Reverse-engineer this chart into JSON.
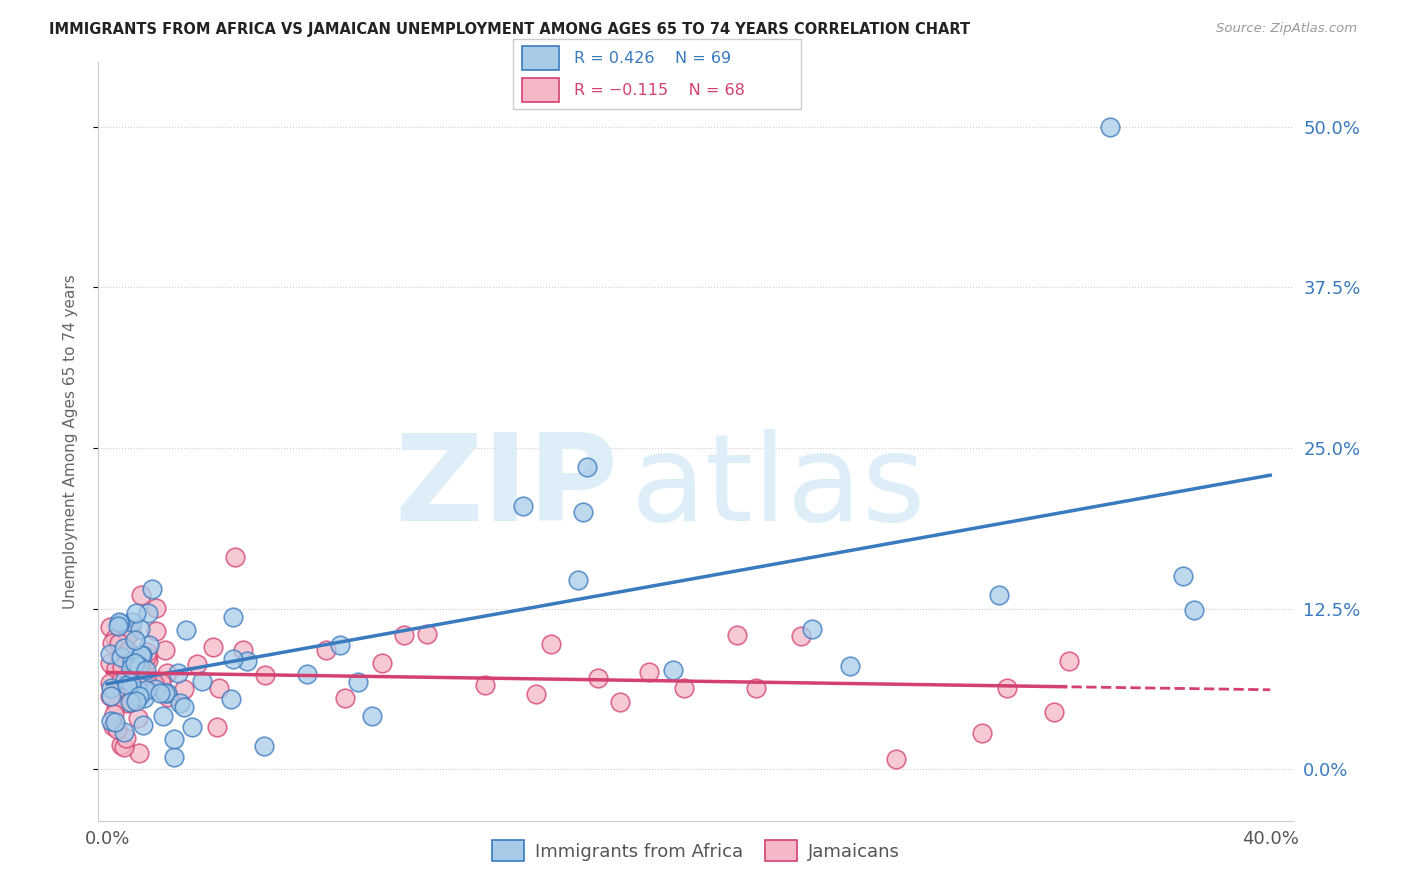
{
  "title": "IMMIGRANTS FROM AFRICA VS JAMAICAN UNEMPLOYMENT AMONG AGES 65 TO 74 YEARS CORRELATION CHART",
  "source": "Source: ZipAtlas.com",
  "ylabel": "Unemployment Among Ages 65 to 74 years",
  "blue_color": "#a8cce8",
  "pink_color": "#f4b8c8",
  "blue_line_color": "#3a7abf",
  "pink_line_color": "#d44070",
  "R_blue": 0.426,
  "N_blue": 69,
  "R_pink": -0.115,
  "N_pink": 68,
  "legend_label_blue": "Immigrants from Africa",
  "legend_label_pink": "Jamaicans",
  "xlim": [
    0.0,
    0.4
  ],
  "ylim": [
    -0.04,
    0.55
  ],
  "yticks": [
    0.0,
    0.125,
    0.25,
    0.375,
    0.5
  ],
  "ytick_labels_right": [
    "0.0%",
    "12.5%",
    "25.0%",
    "37.5%",
    "50.0%"
  ],
  "xtick_labels": [
    "0.0%",
    "40.0%"
  ],
  "watermark_zip": "ZIP",
  "watermark_atlas": "atlas"
}
